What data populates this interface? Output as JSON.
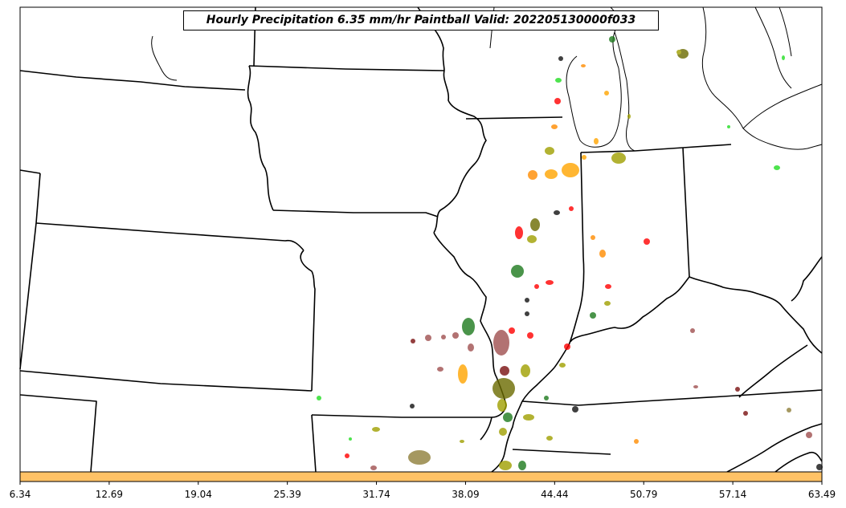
{
  "title": "Hourly Precipitation 6.35 mm/hr Paintball Valid: 202205130000f033",
  "colorbar": {
    "color": "#ffc266",
    "ticks": [
      "6.34",
      "12.69",
      "19.04",
      "25.39",
      "31.74",
      "38.09",
      "44.44",
      "50.79",
      "57.14",
      "63.49"
    ]
  },
  "colors": {
    "red": "#ff0000",
    "orange": "#ff8c00",
    "gold": "#ffa500",
    "olive": "#a0a000",
    "dark_olive": "#6b6b00",
    "green": "#1e7a1e",
    "lime": "#22dd22",
    "maroon": "#7a1010",
    "brown": "#a05050",
    "tan": "#8f7f3a",
    "black": "#111111"
  }
}
